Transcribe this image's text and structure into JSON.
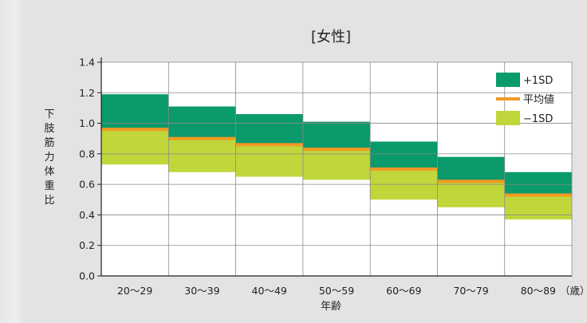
{
  "chart_data": {
    "type": "bar",
    "title": "[女性]",
    "xlabel": "年齢",
    "ylabel": "下肢筋力体重比",
    "x_unit": "（歳）",
    "categories": [
      "20〜29",
      "30〜39",
      "40〜49",
      "50〜59",
      "60〜69",
      "70〜79",
      "80〜89"
    ],
    "ylim": [
      0,
      1.4
    ],
    "yticks": [
      "0.0",
      "0.2",
      "0.4",
      "0.6",
      "0.8",
      "1.0",
      "1.2",
      "1.4"
    ],
    "grid": true,
    "legend_position": "top-right",
    "series": [
      {
        "name": "+1SD",
        "values": [
          1.19,
          1.11,
          1.06,
          1.01,
          0.88,
          0.78,
          0.68
        ]
      },
      {
        "name": "平均値",
        "values": [
          0.96,
          0.9,
          0.86,
          0.83,
          0.7,
          0.62,
          0.53
        ]
      },
      {
        "name": "−1SD",
        "values": [
          0.73,
          0.68,
          0.65,
          0.63,
          0.5,
          0.45,
          0.37
        ]
      }
    ],
    "colors": {
      "plus1sd": "#0a9a6b",
      "mean": "#f39a22",
      "minus1sd": "#c0d63a",
      "grid": "#8a8a8a",
      "axis": "#222222",
      "plot_bg": "#ffffff",
      "panel_bg": "#e3e3e3"
    }
  }
}
